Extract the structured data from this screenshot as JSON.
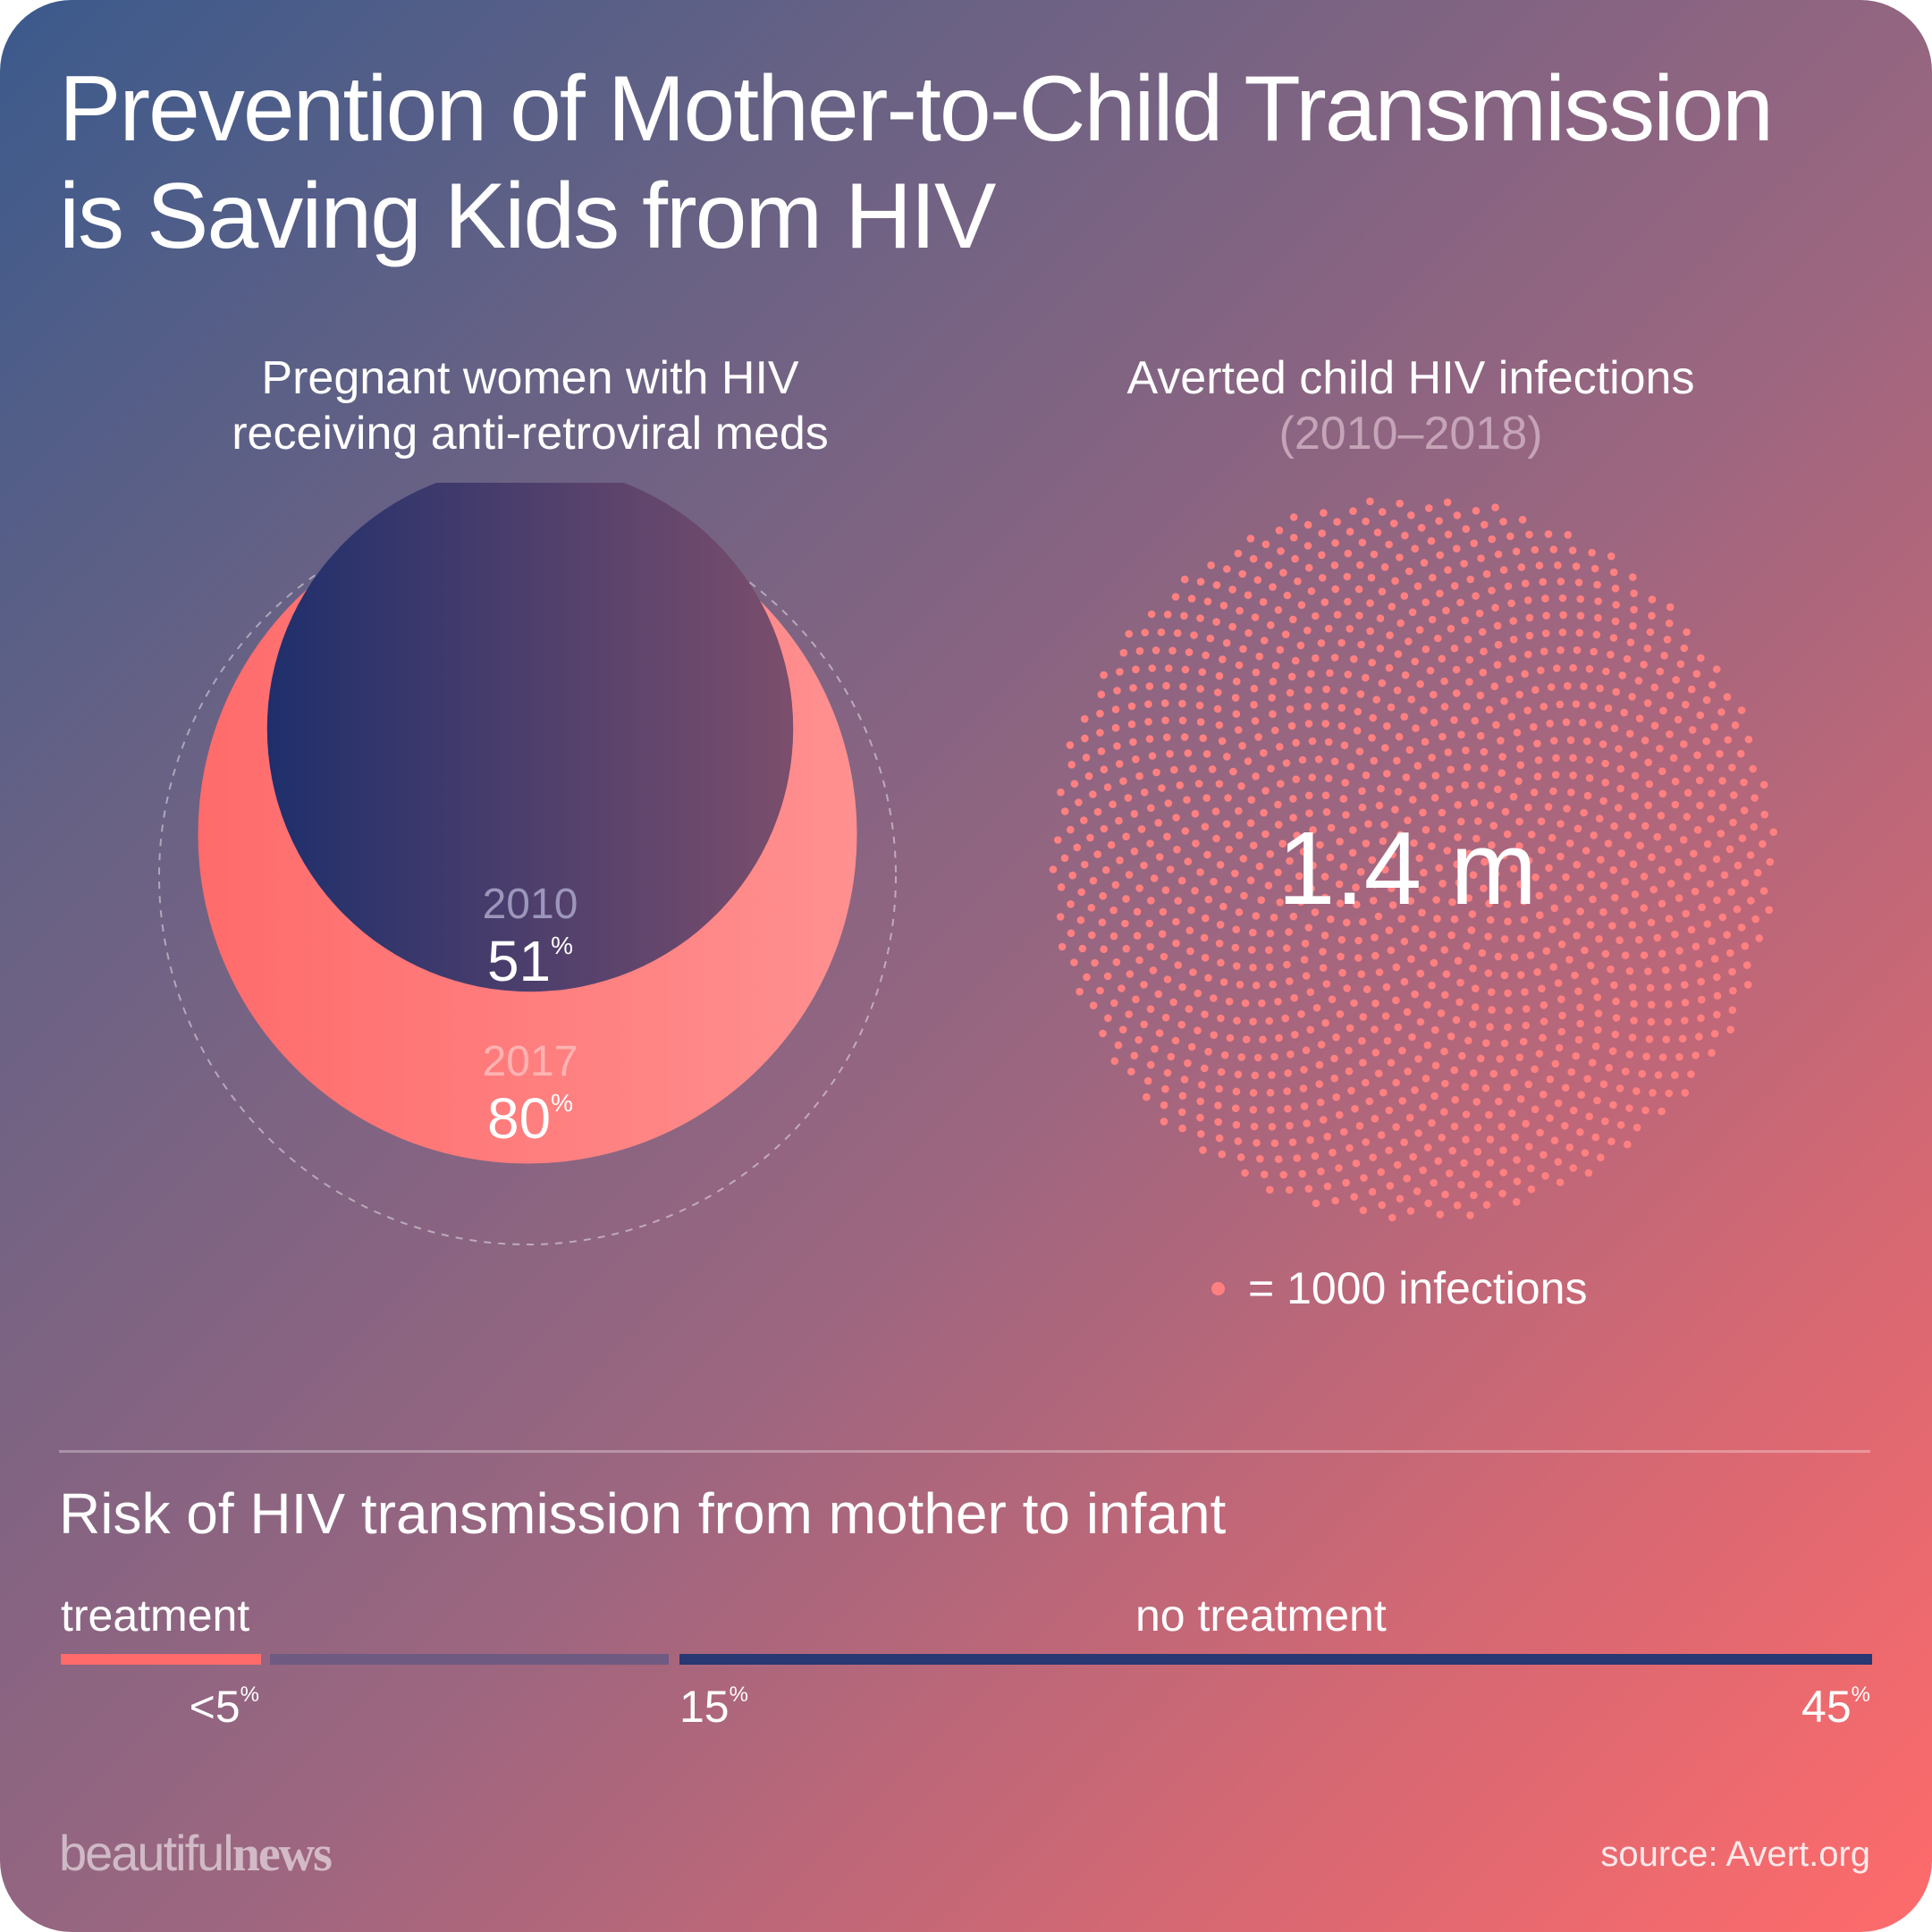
{
  "title_line1": "Prevention of Mother-to-Child Transmission",
  "title_line2": "is Saving Kids from HIV",
  "left_panel": {
    "subtitle_line1": "Pregnant women with HIV",
    "subtitle_line2": "receiving anti-retroviral meds"
  },
  "right_panel": {
    "subtitle_line1": "Averted child HIV infections",
    "subtitle_line2": "(2010–2018)",
    "big_number": "1.4 m",
    "legend_text": "= 1000 infections"
  },
  "risk": {
    "title": "Risk of HIV transmission from mother to infant",
    "treatment_label": "treatment",
    "no_treatment_label": "no treatment",
    "pct_low": "<5",
    "pct_mid": "15",
    "pct_high": "45",
    "pct_sign": "%"
  },
  "logo": {
    "part1": "beautiful",
    "part2": "news"
  },
  "source": "source: Avert.org",
  "colors": {
    "coral": "#ff6b6b",
    "navy": "#283872",
    "muted_purple": "#6f5a82",
    "dot": "#ff8080"
  },
  "chart_data": [
    {
      "type": "bubble",
      "series": [
        {
          "name": "2010",
          "value": 51,
          "unit": "%"
        },
        {
          "name": "2017",
          "value": 80,
          "unit": "%"
        }
      ],
      "reference_max": 100
    },
    {
      "type": "dot-density",
      "total_value": 1400000,
      "label": "1.4 m",
      "unit_per_dot": 1000,
      "dot_count": 1400
    },
    {
      "type": "bar",
      "title": "Risk of HIV transmission from mother to infant",
      "segments": [
        {
          "name": "treatment",
          "value": 5,
          "display": "<5%"
        },
        {
          "name": "no treatment",
          "value_min": 15,
          "value_max": 45,
          "display": [
            "15%",
            "45%"
          ]
        }
      ],
      "xlim": [
        0,
        45
      ]
    }
  ]
}
